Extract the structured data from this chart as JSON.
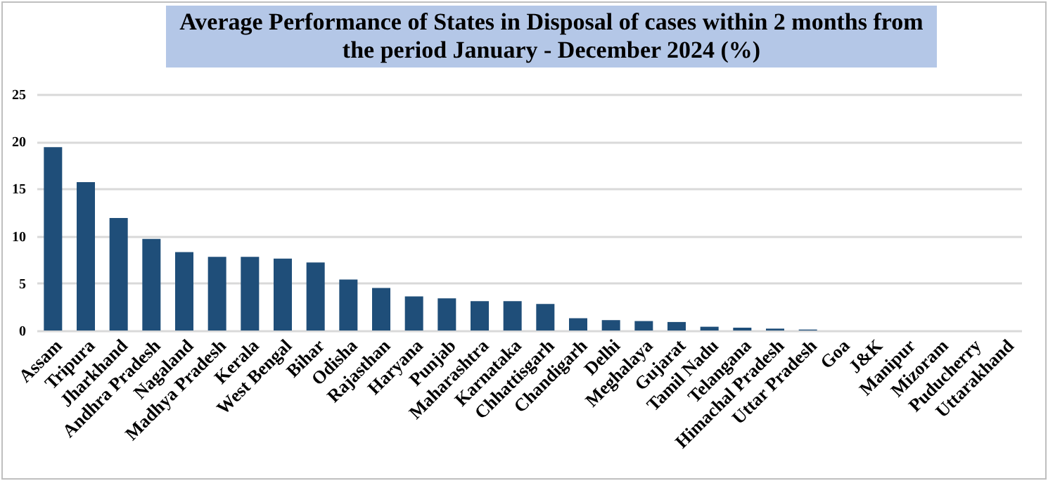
{
  "chart_data": {
    "type": "bar",
    "title": "Average Performance of States in Disposal of cases within 2 months from the period January - December 2024 (%)",
    "categories": [
      "Assam",
      "Tripura",
      "Jharkhand",
      "Andhra Pradesh",
      "Nagaland",
      "Madhya Pradesh",
      "Kerala",
      "West Bengal",
      "Bihar",
      "Odisha",
      "Rajasthan",
      "Haryana",
      "Punjab",
      "Maharashtra",
      "Karnataka",
      "Chhattisgarh",
      "Chandigarh",
      "Delhi",
      "Meghalaya",
      "Gujarat",
      "Tamil Nadu",
      "Telangana",
      "Himachal Pradesh",
      "Uttar Pradesh",
      "Goa",
      "J&K",
      "Manipur",
      "Mizoram",
      "Puducherry",
      "Uttarakhand"
    ],
    "values": [
      19.4,
      15.7,
      11.9,
      9.7,
      8.3,
      7.8,
      7.8,
      7.6,
      7.2,
      5.4,
      4.5,
      3.6,
      3.4,
      3.1,
      3.1,
      2.8,
      1.3,
      1.1,
      1.0,
      0.9,
      0.4,
      0.3,
      0.2,
      0.1,
      0,
      0,
      0,
      0,
      0,
      0
    ],
    "color": "#1f4e79",
    "ylim": [
      0,
      25
    ],
    "yticks": [
      0,
      5,
      10,
      15,
      20,
      25
    ],
    "grid": "y"
  }
}
